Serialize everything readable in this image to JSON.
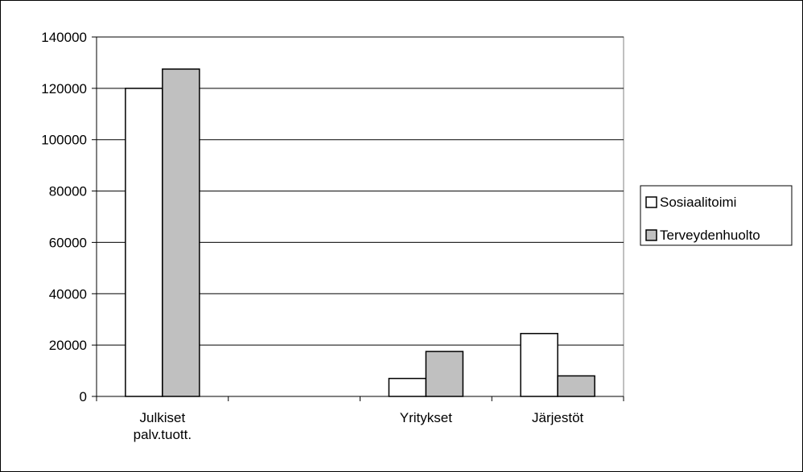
{
  "chart_data": {
    "type": "bar",
    "categories": [
      "Julkiset\npalv.tuott.",
      "",
      "Yritykset",
      "Järjestöt"
    ],
    "series": [
      {
        "name": "Sosiaalitoimi",
        "values": [
          120000,
          0,
          7000,
          24500
        ],
        "color": "#ffffff"
      },
      {
        "name": "Terveydenhuolto",
        "values": [
          127500,
          0,
          17500,
          8000
        ],
        "color": "#c0c0c0"
      }
    ],
    "ylim": [
      0,
      140000
    ],
    "yticks": [
      0,
      20000,
      40000,
      60000,
      80000,
      100000,
      120000,
      140000
    ],
    "grid": true,
    "legend": "right",
    "title": "",
    "xlabel": "",
    "ylabel": ""
  }
}
